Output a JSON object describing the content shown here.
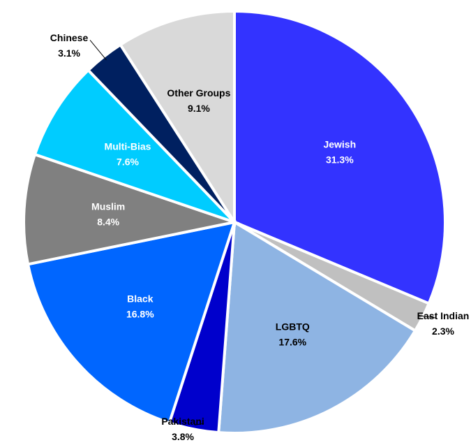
{
  "chart_data": {
    "type": "pie",
    "categories": [
      "Jewish",
      "East Indian",
      "LGBTQ",
      "Pakistani",
      "Black",
      "Muslim",
      "Multi-Bias",
      "Chinese",
      "Other Groups"
    ],
    "values": [
      31.3,
      2.3,
      17.6,
      3.8,
      16.8,
      8.4,
      7.6,
      3.1,
      9.1
    ],
    "value_labels": [
      "31.3%",
      "2.3%",
      "17.6%",
      "3.8%",
      "16.8%",
      "8.4%",
      "7.6%",
      "3.1%",
      "9.1%"
    ],
    "colors": [
      "#3333ff",
      "#c0c0c0",
      "#8eb4e3",
      "#0000cc",
      "#0066ff",
      "#808080",
      "#00ccff",
      "#002060",
      "#d9d9d9"
    ]
  }
}
